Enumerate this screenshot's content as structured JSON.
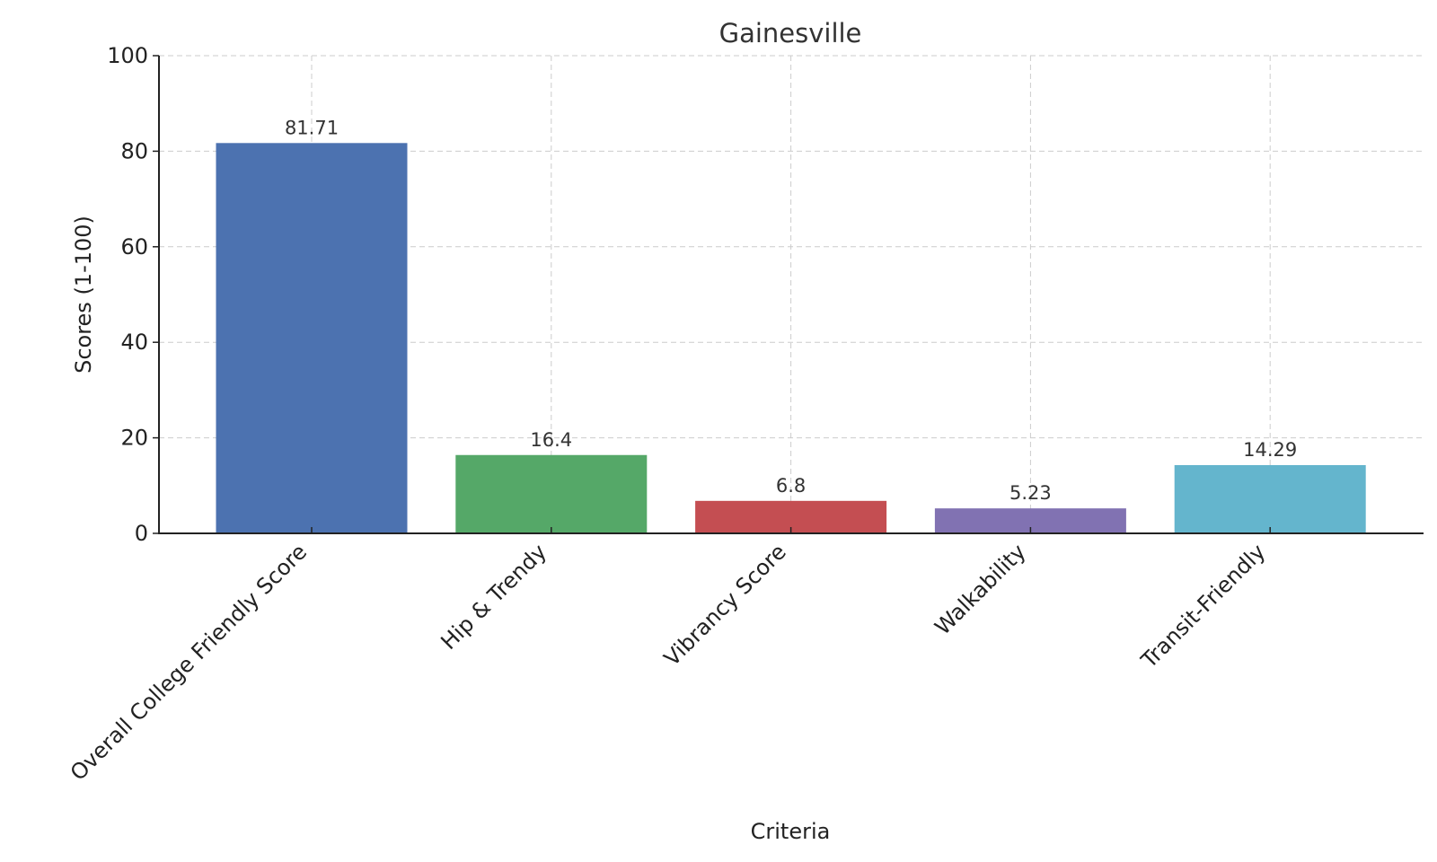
{
  "chart_data": {
    "type": "bar",
    "title": "Gainesville",
    "xlabel": "Criteria",
    "ylabel": "Scores (1-100)",
    "ylim": [
      0,
      100
    ],
    "yticks": [
      0,
      20,
      40,
      60,
      80,
      100
    ],
    "grid": true,
    "categories": [
      "Overall College Friendly Score",
      "Hip & Trendy",
      "Vibrancy Score",
      "Walkability",
      "Transit-Friendly"
    ],
    "values": [
      81.71,
      16.4,
      6.8,
      5.23,
      14.29
    ],
    "value_labels": [
      "81.71",
      "16.4",
      "6.8",
      "5.23",
      "14.29"
    ],
    "colors": [
      "#4c72b0",
      "#55a868",
      "#c44e52",
      "#8172b2",
      "#64b5cd"
    ]
  }
}
